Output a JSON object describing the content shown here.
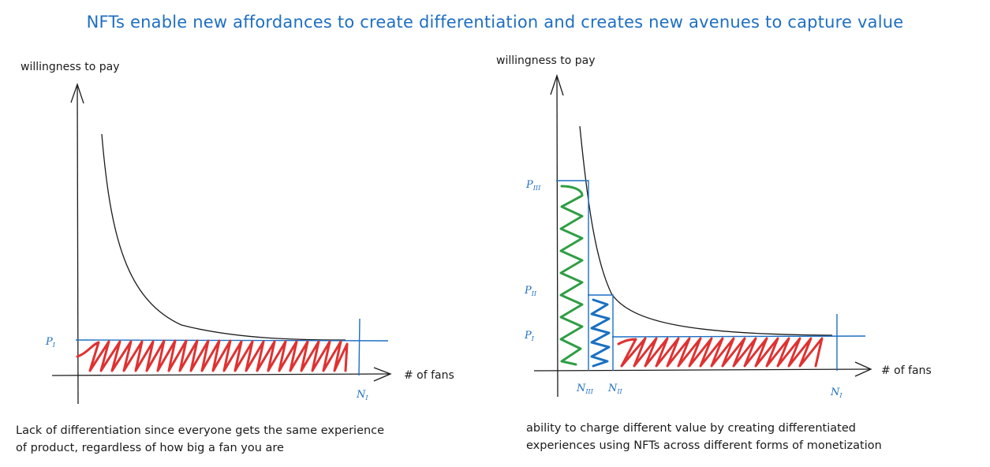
{
  "title": "NFTs enable new affordances to create differentiation and creates new avenues to capture value",
  "left_panel": {
    "y_axis_label": "willingness to pay",
    "x_axis_label": "# of fans",
    "price_label": {
      "main": "P",
      "sub": "I"
    },
    "quantity_label": {
      "main": "N",
      "sub": "I"
    },
    "caption_lines": [
      "Lack of differentiation since everyone gets the same experience",
      "of product, regardless of how big a fan you are"
    ]
  },
  "right_panel": {
    "y_axis_label": "willingness to pay",
    "x_axis_label": "# of fans",
    "price_labels": [
      {
        "main": "P",
        "sub": "III"
      },
      {
        "main": "P",
        "sub": "II"
      },
      {
        "main": "P",
        "sub": "I"
      }
    ],
    "quantity_labels": [
      {
        "main": "N",
        "sub": "III"
      },
      {
        "main": "N",
        "sub": "II"
      },
      {
        "main": "N",
        "sub": "I"
      }
    ],
    "caption_lines": [
      "ability to charge different value by creating differentiated",
      "experiences using NFTs across different forms of monetization"
    ]
  },
  "colors": {
    "title": "#1e6fc2",
    "axis": "#1b1b1b",
    "price_line": "#1e6fc2",
    "tier_I_fill": "#e03131",
    "tier_II_fill": "#1971c2",
    "tier_III_fill": "#2f9e44"
  }
}
